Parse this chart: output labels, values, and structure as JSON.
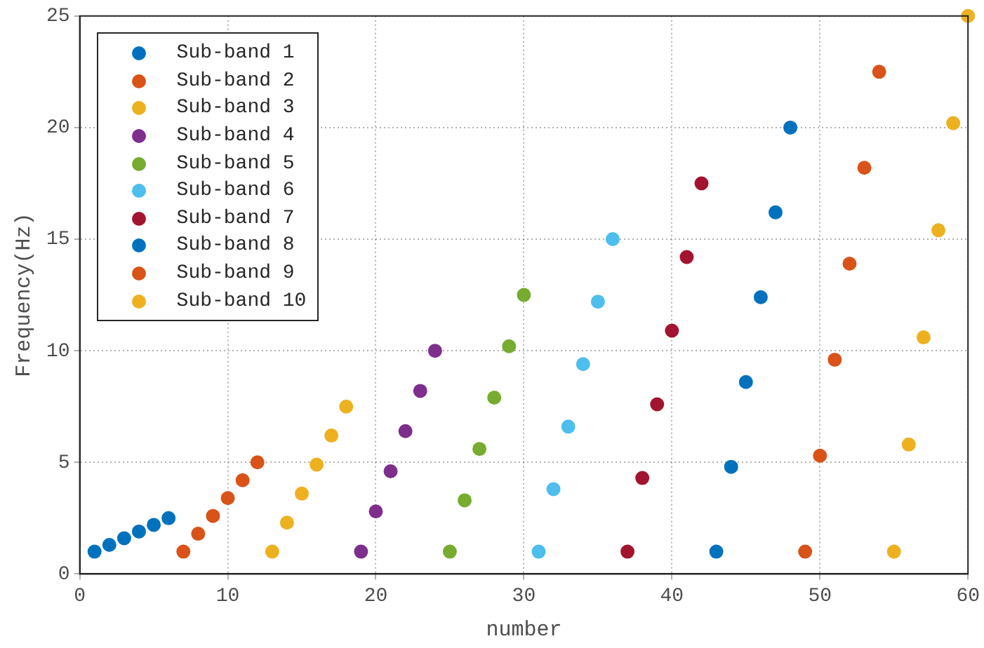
{
  "chart_data": {
    "type": "scatter",
    "xlabel": "number",
    "ylabel": "Frequency(Hz)",
    "xlim": [
      0,
      60
    ],
    "xticks": [
      0,
      10,
      20,
      30,
      40,
      50,
      60
    ],
    "ylim": [
      0,
      25
    ],
    "yticks": [
      0,
      5,
      10,
      15,
      20,
      25
    ],
    "grid": true,
    "legend": "top left",
    "marker": "circle",
    "series": [
      {
        "name": "Sub-band 1",
        "color": "#0072bd",
        "x": [
          1,
          2,
          3,
          4,
          5,
          6
        ],
        "values": [
          1.0,
          1.3,
          1.6,
          1.9,
          2.2,
          2.5
        ]
      },
      {
        "name": "Sub-band 2",
        "color": "#d95319",
        "x": [
          7,
          8,
          9,
          10,
          11,
          12
        ],
        "values": [
          1.0,
          1.8,
          2.6,
          3.4,
          4.2,
          5.0
        ]
      },
      {
        "name": "Sub-band 3",
        "color": "#edb120",
        "x": [
          13,
          14,
          15,
          16,
          17,
          18
        ],
        "values": [
          1.0,
          2.3,
          3.6,
          4.9,
          6.2,
          7.5
        ]
      },
      {
        "name": "Sub-band 4",
        "color": "#7e2f8e",
        "x": [
          19,
          20,
          21,
          22,
          23,
          24
        ],
        "values": [
          1.0,
          2.8,
          4.6,
          6.4,
          8.2,
          10.0
        ]
      },
      {
        "name": "Sub-band 5",
        "color": "#77ac30",
        "x": [
          25,
          26,
          27,
          28,
          29,
          30
        ],
        "values": [
          1.0,
          3.3,
          5.6,
          7.9,
          10.2,
          12.5
        ]
      },
      {
        "name": "Sub-band 6",
        "color": "#4dbeee",
        "x": [
          31,
          32,
          33,
          34,
          35,
          36
        ],
        "values": [
          1.0,
          3.8,
          6.6,
          9.4,
          12.2,
          15.0
        ]
      },
      {
        "name": "Sub-band 7",
        "color": "#a2142f",
        "x": [
          37,
          38,
          39,
          40,
          41,
          42
        ],
        "values": [
          1.0,
          4.3,
          7.6,
          10.9,
          14.2,
          17.5
        ]
      },
      {
        "name": "Sub-band 8",
        "color": "#0072bd",
        "x": [
          43,
          44,
          45,
          46,
          47,
          48
        ],
        "values": [
          1.0,
          4.8,
          8.6,
          12.4,
          16.2,
          20.0
        ]
      },
      {
        "name": "Sub-band 9",
        "color": "#d95319",
        "x": [
          49,
          50,
          51,
          52,
          53,
          54
        ],
        "values": [
          1.0,
          5.3,
          9.6,
          13.9,
          18.2,
          22.5
        ]
      },
      {
        "name": "Sub-band 10",
        "color": "#edb120",
        "x": [
          55,
          56,
          57,
          58,
          59,
          60
        ],
        "values": [
          1.0,
          5.8,
          10.6,
          15.4,
          20.2,
          25.0
        ]
      }
    ]
  }
}
